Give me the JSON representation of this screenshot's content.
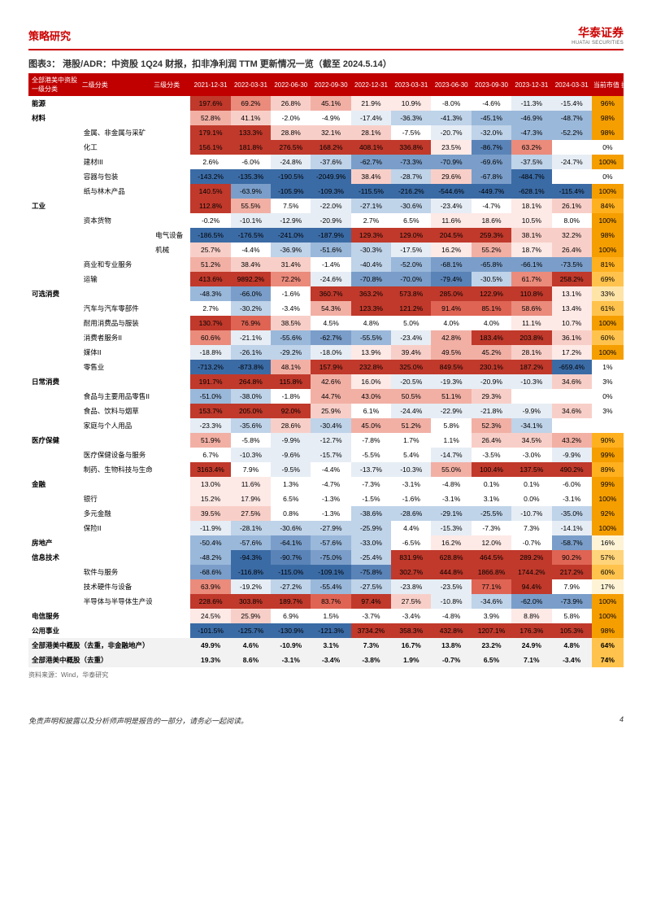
{
  "header": {
    "category": "策略研究",
    "logo": "华泰证券",
    "logo_sub": "HUATAI SECURITIES"
  },
  "chart": {
    "title": "图表3：  港股/ADR：中资股 1Q24 财报，扣非净利润 TTM 更新情况一览（截至 2024.5.14）",
    "source": "资料来源：Wind，华泰研究"
  },
  "footer": {
    "disclaimer": "免责声明和披露以及分析师声明是报告的一部分，请务必一起阅读。",
    "page": "4"
  },
  "colors": {
    "heat": [
      "#3b6ba5",
      "#5a84b8",
      "#7a9ec9",
      "#9ab8da",
      "#bfd3e9",
      "#e6edf5",
      "#ffffff",
      "#fde9e6",
      "#f8cfc8",
      "#f2b0a5",
      "#ea8b7c",
      "#df6454",
      "#c0392b"
    ],
    "disclosure": [
      "#ffffff",
      "#fff3d6",
      "#ffe4a8",
      "#ffd47a",
      "#ffc34d",
      "#ffb01f",
      "#f59e00"
    ]
  },
  "table": {
    "head_top": [
      "全部港美中资股",
      "",
      "",
      "",
      "",
      "",
      "",
      "",
      "",
      "",
      "",
      "",
      "",
      ""
    ],
    "head_bot": [
      "一级分类",
      "二级分类",
      "三级分类"
    ],
    "dates": [
      "2021-12-31",
      "2022-03-31",
      "2022-06-30",
      "2022-09-30",
      "2022-12-31",
      "2023-03-31",
      "2023-06-30",
      "2023-09-30",
      "2023-12-31",
      "2024-03-31"
    ],
    "end_col": "当前市值\n披露率",
    "rows": [
      {
        "t": "sec",
        "c1": "能源",
        "c2": "",
        "c3": "",
        "v": [
          197.6,
          69.2,
          26.8,
          45.1,
          21.9,
          10.9,
          -8.0,
          -4.6,
          -11.3,
          -15.4
        ],
        "d": 96
      },
      {
        "t": "sec",
        "c1": "材料",
        "c2": "",
        "c3": "",
        "v": [
          52.8,
          41.1,
          -2.0,
          -4.9,
          -17.4,
          -36.3,
          -41.3,
          -45.1,
          -46.9,
          -48.7
        ],
        "d": 98
      },
      {
        "c1": "",
        "c2": "金属、非金属与采矿",
        "c3": "",
        "v": [
          179.1,
          133.3,
          28.8,
          32.1,
          28.1,
          -7.5,
          -20.7,
          -32.0,
          -47.3,
          -52.2
        ],
        "d": 98
      },
      {
        "c1": "",
        "c2": "化工",
        "c3": "",
        "v": [
          156.1,
          181.8,
          276.5,
          168.2,
          408.1,
          336.8,
          23.5,
          -86.7,
          63.2,
          null
        ],
        "d": 0
      },
      {
        "c1": "",
        "c2": "建材III",
        "c3": "",
        "v": [
          2.6,
          -6.0,
          -24.8,
          -37.6,
          -62.7,
          -73.3,
          -70.9,
          -69.6,
          -37.5,
          -24.7
        ],
        "d": 100
      },
      {
        "c1": "",
        "c2": "容器与包装",
        "c3": "",
        "v": [
          -143.2,
          -135.3,
          -190.5,
          -2049.9,
          38.4,
          -28.7,
          29.6,
          -67.8,
          -484.7,
          null
        ],
        "d": 0
      },
      {
        "c1": "",
        "c2": "纸与林木产品",
        "c3": "",
        "v": [
          140.5,
          -63.9,
          -105.9,
          -109.3,
          -115.5,
          -216.2,
          -544.6,
          -449.7,
          -628.1,
          -115.4
        ],
        "d": 100
      },
      {
        "t": "sec",
        "c1": "工业",
        "c2": "",
        "c3": "",
        "v": [
          112.8,
          55.5,
          7.5,
          -22.0,
          -27.1,
          -30.6,
          -23.4,
          -4.7,
          18.1,
          26.1
        ],
        "d": 84
      },
      {
        "c1": "",
        "c2": "资本货物",
        "c3": "",
        "v": [
          -0.2,
          -10.1,
          -12.9,
          -20.9,
          2.7,
          6.5,
          11.6,
          18.6,
          10.5,
          8.0
        ],
        "d": 100
      },
      {
        "c1": "",
        "c2": "",
        "c3": "电气设备",
        "v": [
          -186.5,
          -176.5,
          -241.0,
          -187.9,
          129.3,
          129.0,
          204.5,
          259.3,
          38.1,
          32.2
        ],
        "d": 98
      },
      {
        "c1": "",
        "c2": "",
        "c3": "机械",
        "v": [
          25.7,
          -4.4,
          -36.9,
          -51.6,
          -30.3,
          -17.5,
          16.2,
          55.2,
          18.7,
          26.4
        ],
        "d": 100
      },
      {
        "c1": "",
        "c2": "商业和专业服务",
        "c3": "",
        "v": [
          51.2,
          38.4,
          31.4,
          -1.4,
          -40.4,
          -52.0,
          -68.1,
          -65.8,
          -66.1,
          -73.5
        ],
        "d": 81
      },
      {
        "c1": "",
        "c2": "运输",
        "c3": "",
        "v": [
          413.6,
          9892.2,
          72.2,
          -24.6,
          -70.8,
          -70.0,
          -79.4,
          -30.5,
          61.7,
          258.2
        ],
        "d": 69
      },
      {
        "t": "sec",
        "c1": "可选消费",
        "c2": "",
        "c3": "",
        "v": [
          -48.3,
          -66.0,
          -1.6,
          360.7,
          363.2,
          573.8,
          285.0,
          122.9,
          110.8,
          13.1
        ],
        "d": 33
      },
      {
        "c1": "",
        "c2": "汽车与汽车零部件",
        "c3": "",
        "v": [
          2.7,
          -30.2,
          -3.4,
          54.3,
          123.3,
          121.2,
          91.4,
          85.1,
          58.6,
          13.4
        ],
        "d": 61
      },
      {
        "c1": "",
        "c2": "耐用消费品与服装",
        "c3": "",
        "v": [
          130.7,
          76.9,
          38.5,
          4.5,
          4.8,
          5.0,
          4.0,
          4.0,
          11.1,
          10.7
        ],
        "d": 100
      },
      {
        "c1": "",
        "c2": "消费者服务II",
        "c3": "",
        "v": [
          60.6,
          -21.1,
          -55.6,
          -62.7,
          -55.5,
          -23.4,
          42.8,
          183.4,
          203.8,
          36.1
        ],
        "d": 60
      },
      {
        "c1": "",
        "c2": "媒体II",
        "c3": "",
        "v": [
          -18.8,
          -26.1,
          -29.2,
          -18.0,
          13.9,
          39.4,
          49.5,
          45.2,
          28.1,
          17.2
        ],
        "d": 100
      },
      {
        "c1": "",
        "c2": "零售业",
        "c3": "",
        "v": [
          -713.2,
          -873.8,
          48.1,
          157.9,
          232.8,
          325.0,
          849.5,
          230.1,
          187.2,
          -659.4
        ],
        "d": 1
      },
      {
        "t": "sec",
        "c1": "日常消费",
        "c2": "",
        "c3": "",
        "v": [
          191.7,
          264.8,
          115.8,
          42.6,
          16.0,
          -20.5,
          -19.3,
          -20.9,
          -10.3,
          34.6
        ],
        "d": 3
      },
      {
        "c1": "",
        "c2": "食品与主要用品零售II",
        "c3": "",
        "v": [
          -51.0,
          -38.0,
          -1.8,
          44.7,
          43.0,
          50.5,
          51.1,
          29.3,
          null,
          null
        ],
        "d": 0
      },
      {
        "c1": "",
        "c2": "食品、饮料与烟草",
        "c3": "",
        "v": [
          153.7,
          205.0,
          92.0,
          25.9,
          6.1,
          -24.4,
          -22.9,
          -21.8,
          -9.9,
          34.6
        ],
        "d": 3
      },
      {
        "c1": "",
        "c2": "家庭与个人用品",
        "c3": "",
        "v": [
          -23.3,
          -35.6,
          28.6,
          -30.4,
          45.0,
          51.2,
          5.8,
          52.3,
          -34.1,
          null
        ],
        "d": null
      },
      {
        "t": "sec",
        "c1": "医疗保健",
        "c2": "",
        "c3": "",
        "v": [
          51.9,
          -5.8,
          -9.9,
          -12.7,
          -7.8,
          1.7,
          1.1,
          26.4,
          34.5,
          43.2
        ],
        "d": 90
      },
      {
        "c1": "",
        "c2": "医疗保健设备与服务",
        "c3": "",
        "v": [
          6.7,
          -10.3,
          -9.6,
          -15.7,
          -5.5,
          5.4,
          -14.7,
          -3.5,
          -3.0,
          -9.9
        ],
        "d": 99
      },
      {
        "c1": "",
        "c2": "制药、生物科技与生命科学",
        "c3": "",
        "v": [
          3163.4,
          7.9,
          -9.5,
          -4.4,
          -13.7,
          -10.3,
          55.0,
          100.4,
          137.5,
          490.2
        ],
        "d": 89
      },
      {
        "t": "sec",
        "c1": "金融",
        "c2": "",
        "c3": "",
        "v": [
          13.0,
          11.6,
          1.3,
          -4.7,
          -7.3,
          -3.1,
          -4.8,
          0.1,
          0.1,
          -6.0
        ],
        "d": 99
      },
      {
        "c1": "",
        "c2": "银行",
        "c3": "",
        "v": [
          15.2,
          17.9,
          6.5,
          -1.3,
          -1.5,
          -1.6,
          -3.1,
          3.1,
          0.0,
          -3.1
        ],
        "d": 100
      },
      {
        "c1": "",
        "c2": "多元金融",
        "c3": "",
        "v": [
          39.5,
          27.5,
          0.8,
          -1.3,
          -38.6,
          -28.6,
          -29.1,
          -25.5,
          -10.7,
          -35.0
        ],
        "d": 92
      },
      {
        "c1": "",
        "c2": "保险II",
        "c3": "",
        "v": [
          -11.9,
          -28.1,
          -30.6,
          -27.9,
          -25.9,
          4.4,
          -15.3,
          -7.3,
          7.3,
          -14.1
        ],
        "d": 100
      },
      {
        "t": "sec",
        "c1": "房地产",
        "c2": "",
        "c3": "",
        "v": [
          -50.4,
          -57.6,
          -64.1,
          -57.6,
          -33.0,
          -6.5,
          16.2,
          12.0,
          -0.7,
          -58.7
        ],
        "d": 16
      },
      {
        "t": "sec",
        "c1": "信息技术",
        "c2": "",
        "c3": "",
        "v": [
          -48.2,
          -94.3,
          -90.7,
          -75.0,
          -25.4,
          831.9,
          628.8,
          464.5,
          289.2,
          90.2
        ],
        "d": 57
      },
      {
        "c1": "",
        "c2": "软件与服务",
        "c3": "",
        "v": [
          -68.6,
          -116.8,
          -115.0,
          -109.1,
          -75.8,
          302.7,
          444.8,
          1866.8,
          1744.2,
          217.2
        ],
        "d": 60
      },
      {
        "c1": "",
        "c2": "技术硬件与设备",
        "c3": "",
        "v": [
          63.9,
          -19.2,
          -27.2,
          -55.4,
          -27.5,
          -23.8,
          -23.5,
          77.1,
          94.4,
          7.9
        ],
        "d": 17
      },
      {
        "c1": "",
        "c2": "半导体与半导体生产设备",
        "c3": "",
        "v": [
          228.6,
          303.8,
          189.7,
          83.7,
          97.4,
          27.5,
          -10.8,
          -34.6,
          -62.0,
          -73.9
        ],
        "d": 100
      },
      {
        "t": "sec",
        "c1": "电信服务",
        "c2": "",
        "c3": "",
        "v": [
          24.5,
          25.9,
          6.9,
          1.5,
          -3.7,
          -3.4,
          -4.8,
          3.9,
          8.8,
          5.8
        ],
        "d": 100
      },
      {
        "t": "sec",
        "c1": "公用事业",
        "c2": "",
        "c3": "",
        "v": [
          -101.5,
          -125.7,
          -130.9,
          -121.3,
          3734.2,
          358.3,
          432.8,
          1207.1,
          176.3,
          105.3
        ],
        "d": 98
      },
      {
        "t": "tot",
        "c1": "全部港美中概股（去重，非金融地产）",
        "c2": "",
        "c3": "",
        "v": [
          49.9,
          4.6,
          -10.9,
          3.1,
          7.3,
          16.7,
          13.8,
          23.2,
          24.9,
          4.8
        ],
        "d": 64
      },
      {
        "t": "tot",
        "c1": "全部港美中概股（去重）",
        "c2": "",
        "c3": "",
        "v": [
          19.3,
          8.6,
          -3.1,
          -3.4,
          -3.8,
          1.9,
          -0.7,
          6.5,
          7.1,
          -3.4
        ],
        "d": 74
      }
    ]
  }
}
